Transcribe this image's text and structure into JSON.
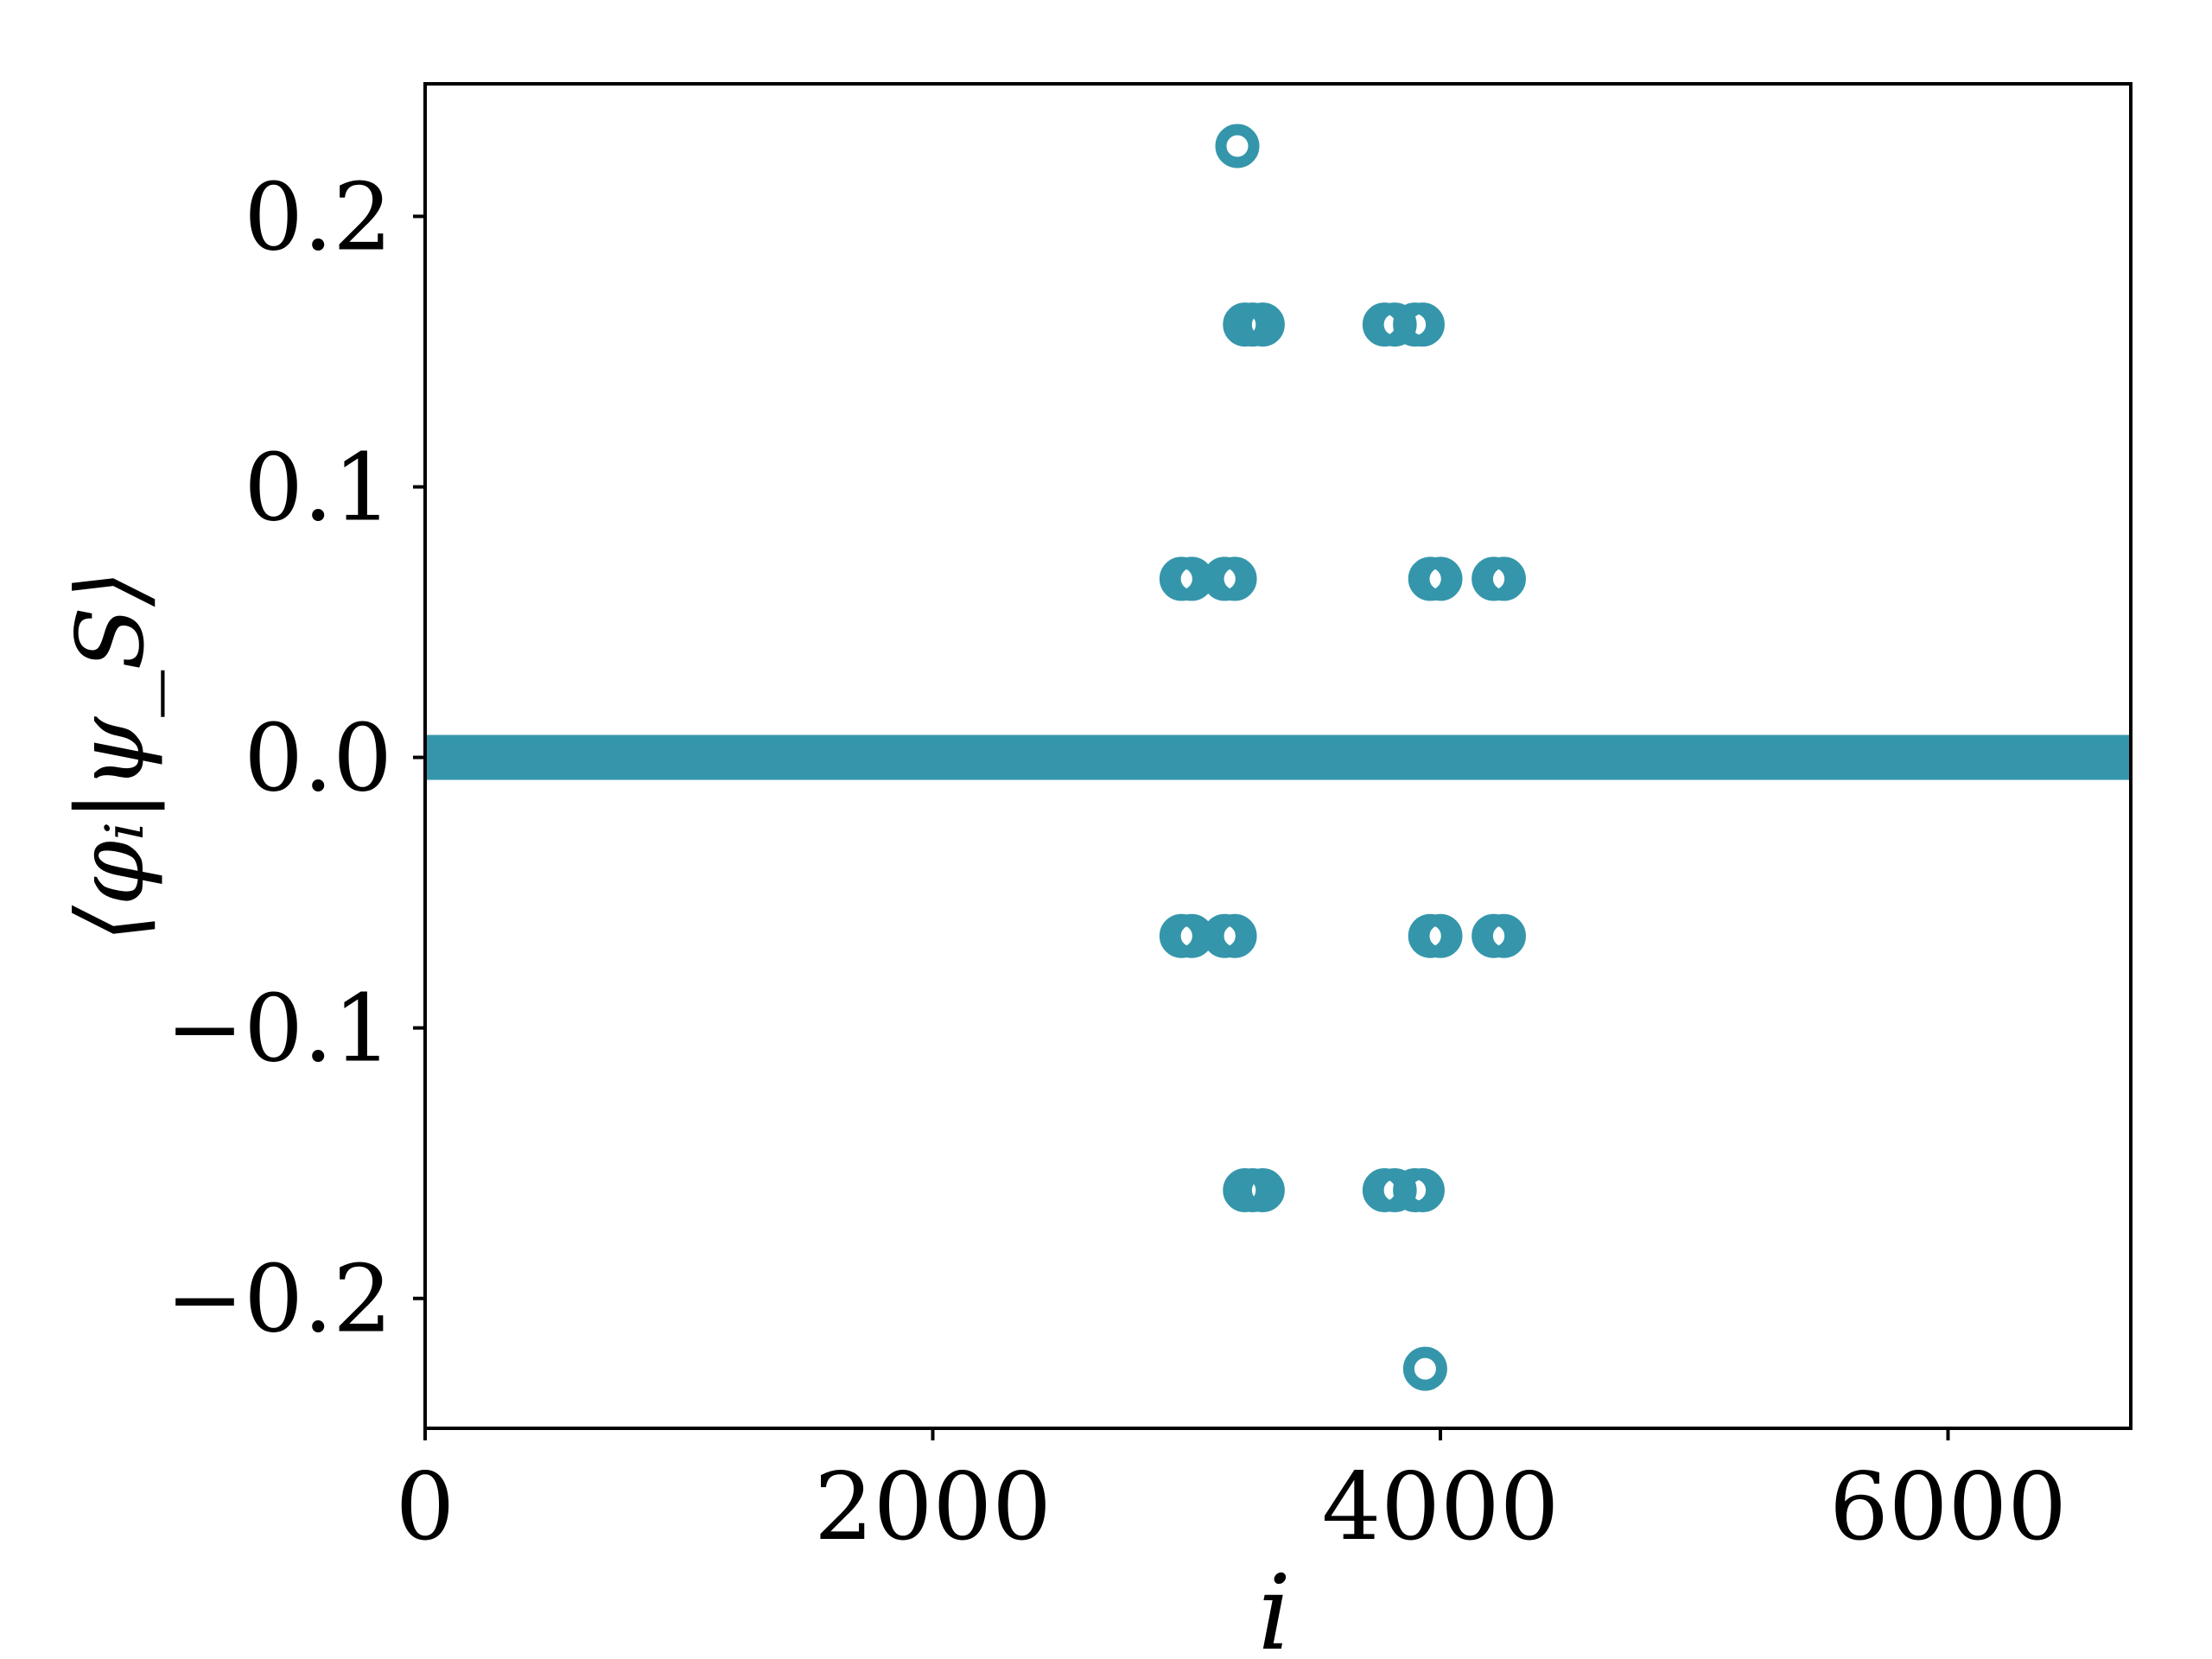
{
  "chart_data": {
    "type": "scatter",
    "title": "",
    "xlabel": "i",
    "ylabel": "⟨φᵢ|ψ_S⟩",
    "xlim": [
      0,
      6720
    ],
    "ylim": [
      -0.248,
      0.249
    ],
    "xticks": [
      0,
      2000,
      4000,
      6000
    ],
    "xtick_labels": [
      "0",
      "2000",
      "4000",
      "6000"
    ],
    "yticks": [
      -0.2,
      -0.1,
      0.0,
      0.1,
      0.2
    ],
    "ytick_labels": [
      "−0.2",
      "−0.1",
      "0.0",
      "0.1",
      "0.2"
    ],
    "grid": false,
    "legend": null,
    "marker": "open-circle",
    "color": "#3596AB",
    "zero_band": {
      "x_start": 0,
      "x_end": 6720,
      "y": 0.0,
      "note": "all remaining indices have value 0"
    },
    "points": [
      {
        "x": 3200,
        "y": 0.226
      },
      {
        "x": 3230,
        "y": 0.16
      },
      {
        "x": 3260,
        "y": 0.16
      },
      {
        "x": 3300,
        "y": 0.16
      },
      {
        "x": 3780,
        "y": 0.16
      },
      {
        "x": 3820,
        "y": 0.16
      },
      {
        "x": 3900,
        "y": 0.16
      },
      {
        "x": 3930,
        "y": 0.16
      },
      {
        "x": 2980,
        "y": 0.066
      },
      {
        "x": 3020,
        "y": 0.066
      },
      {
        "x": 3150,
        "y": 0.066
      },
      {
        "x": 3190,
        "y": 0.066
      },
      {
        "x": 3960,
        "y": 0.066
      },
      {
        "x": 4000,
        "y": 0.066
      },
      {
        "x": 4210,
        "y": 0.066
      },
      {
        "x": 4250,
        "y": 0.066
      },
      {
        "x": 2980,
        "y": -0.066
      },
      {
        "x": 3020,
        "y": -0.066
      },
      {
        "x": 3150,
        "y": -0.066
      },
      {
        "x": 3190,
        "y": -0.066
      },
      {
        "x": 3960,
        "y": -0.066
      },
      {
        "x": 4000,
        "y": -0.066
      },
      {
        "x": 4210,
        "y": -0.066
      },
      {
        "x": 4250,
        "y": -0.066
      },
      {
        "x": 3230,
        "y": -0.16
      },
      {
        "x": 3260,
        "y": -0.16
      },
      {
        "x": 3300,
        "y": -0.16
      },
      {
        "x": 3780,
        "y": -0.16
      },
      {
        "x": 3820,
        "y": -0.16
      },
      {
        "x": 3900,
        "y": -0.16
      },
      {
        "x": 3930,
        "y": -0.16
      },
      {
        "x": 3940,
        "y": -0.226
      }
    ]
  }
}
